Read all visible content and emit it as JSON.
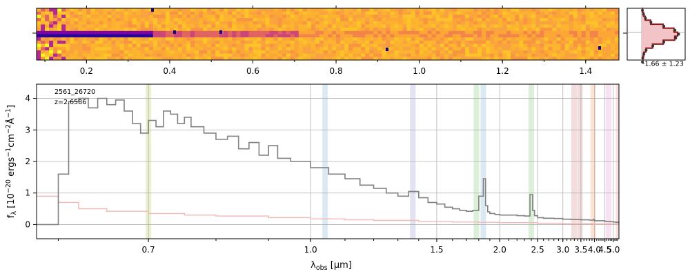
{
  "chart_data": [
    {
      "type": "heatmap",
      "panel": "2d-spectrum",
      "xlabel": "",
      "x_ticks": [
        "0.2",
        "0.4",
        "0.6",
        "0.8",
        "1.0",
        "1.2",
        "1.4"
      ],
      "x_tick_values": [
        0.2,
        0.4,
        0.6,
        0.8,
        1.0,
        1.2,
        1.4
      ],
      "xlim": [
        0.08,
        1.48
      ],
      "colormap": "plasma",
      "trace_row_fraction": 0.48
    },
    {
      "type": "line",
      "panel": "spatial-profile",
      "annotation": "-1.66 ± 1.23",
      "profile": [
        0.02,
        0.05,
        0.1,
        0.25,
        0.6,
        0.9,
        1.0,
        0.92,
        0.6,
        0.3,
        0.12,
        0.06,
        0.03,
        0.02
      ],
      "colors": {
        "profile": "#8b1a1a",
        "fill": "#f2c4c8",
        "points": "#333333"
      }
    },
    {
      "type": "line",
      "panel": "1d-spectrum",
      "xlabel": "λobs [μm]",
      "ylabel": "fλ [10−20 ergs−1cm−2Å−1]",
      "label_object": "2561_26720",
      "label_redshift": "z=2.6586",
      "x_scale": "reciprocal",
      "x_ticks": [
        "0.7",
        "1.0",
        "1.5",
        "2.0",
        "2.5",
        "3.0",
        "3.5",
        "4.0",
        "4.5",
        "5.0"
      ],
      "x_tick_values": [
        0.7,
        1.0,
        1.5,
        2.0,
        2.5,
        3.0,
        3.5,
        4.0,
        4.5,
        5.0
      ],
      "xlim": [
        0.58,
        5.4
      ],
      "y_ticks": [
        "0",
        "1",
        "2",
        "3",
        "4"
      ],
      "y_tick_values": [
        0,
        1,
        2,
        3,
        4
      ],
      "ylim": [
        -0.45,
        4.45
      ],
      "grid": true,
      "series": [
        {
          "color": "#808080",
          "x": [
            0.58,
            0.6,
            0.61,
            0.62,
            0.63,
            0.64,
            0.65,
            0.66,
            0.67,
            0.68,
            0.69,
            0.7,
            0.71,
            0.72,
            0.73,
            0.74,
            0.75,
            0.76,
            0.78,
            0.8,
            0.82,
            0.84,
            0.86,
            0.88,
            0.9,
            0.92,
            0.95,
            0.98,
            1.0,
            1.05,
            1.1,
            1.15,
            1.2,
            1.25,
            1.3,
            1.35,
            1.4,
            1.45,
            1.5,
            1.55,
            1.6,
            1.65,
            1.7,
            1.75,
            1.8,
            1.84,
            1.86,
            1.88,
            1.9,
            1.95,
            2.0,
            2.1,
            2.2,
            2.3,
            2.38,
            2.42,
            2.45,
            2.5,
            2.6,
            2.8,
            3.0,
            3.2,
            3.5,
            3.8,
            3.95,
            4.0,
            4.2,
            4.5,
            4.8,
            5.0,
            5.2,
            5.4
          ],
          "y": [
            0.0,
            1.6,
            3.9,
            4.0,
            3.7,
            4.0,
            3.8,
            3.95,
            3.6,
            3.2,
            2.9,
            3.3,
            3.1,
            3.6,
            3.5,
            3.2,
            3.4,
            3.1,
            2.9,
            2.7,
            2.8,
            2.4,
            2.6,
            2.2,
            2.5,
            2.1,
            2.0,
            2.0,
            1.8,
            1.6,
            1.45,
            1.25,
            1.15,
            1.0,
            0.9,
            1.05,
            0.85,
            0.7,
            0.65,
            0.55,
            0.5,
            0.45,
            0.42,
            0.45,
            0.9,
            1.45,
            0.6,
            0.4,
            0.35,
            0.32,
            0.3,
            0.3,
            0.28,
            0.27,
            0.95,
            0.45,
            0.28,
            0.22,
            0.2,
            0.19,
            0.17,
            0.16,
            0.15,
            0.14,
            0.16,
            0.12,
            0.12,
            0.1,
            0.09,
            0.08,
            0.07,
            0.05
          ]
        },
        {
          "color": "#f4b8b4",
          "x": [
            0.58,
            0.6,
            0.62,
            0.65,
            0.7,
            0.75,
            0.8,
            0.9,
            1.0,
            1.1,
            1.2,
            1.4,
            1.6,
            1.8,
            2.0,
            2.5,
            3.0,
            4.0,
            5.0,
            5.4
          ],
          "y": [
            0.9,
            0.7,
            0.5,
            0.42,
            0.35,
            0.3,
            0.27,
            0.22,
            0.18,
            0.15,
            0.13,
            0.1,
            0.08,
            0.07,
            0.06,
            0.04,
            0.03,
            0.02,
            0.02,
            0.02
          ]
        }
      ],
      "line_bands": [
        {
          "x": 0.7,
          "color": "#ebf2d0"
        },
        {
          "x": 1.04,
          "color": "#dbe9f3"
        },
        {
          "x": 1.37,
          "color": "#e2e2f3"
        },
        {
          "x": 1.78,
          "color": "#dcefd9"
        },
        {
          "x": 1.84,
          "color": "#dbe9f3"
        },
        {
          "x": 2.4,
          "color": "#dcefd9"
        },
        {
          "x": 3.29,
          "color": "#f3dcdc"
        },
        {
          "x": 3.47,
          "color": "#f3dcdc"
        },
        {
          "x": 3.95,
          "color": "#fbe4d6"
        },
        {
          "x": 4.7,
          "color": "#f8e1f2"
        },
        {
          "x": 5.37,
          "color": "#fbe0e0"
        }
      ]
    }
  ]
}
